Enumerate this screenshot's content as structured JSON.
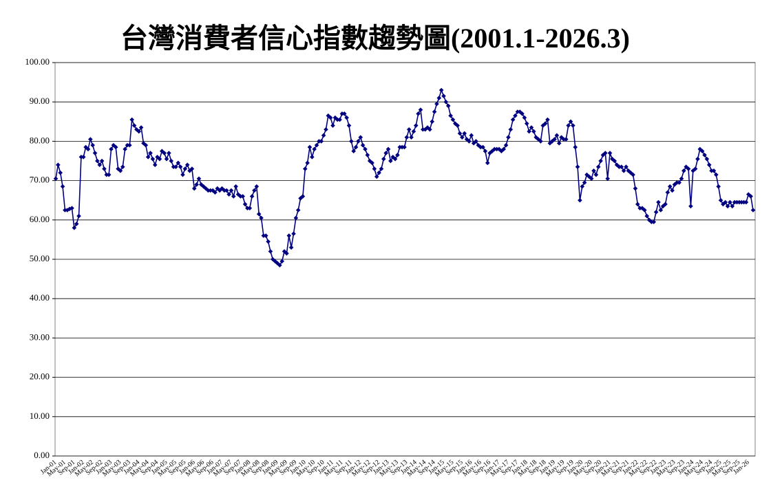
{
  "chart_data": {
    "type": "line",
    "title": "台灣消費者信心指數趨勢圖(2001.1-2026.3)",
    "categories": [
      "Jan-01",
      null,
      null,
      null,
      "May-01",
      null,
      null,
      null,
      "Sep-01",
      null,
      null,
      null,
      "Jan-02",
      null,
      null,
      null,
      "May-02",
      null,
      null,
      null,
      "Sep-02",
      null,
      null,
      null,
      "Jan-03",
      null,
      null,
      null,
      "May-03",
      null,
      null,
      null,
      "Sep-03",
      null,
      null,
      null,
      "Jan-04",
      null,
      null,
      null,
      "May-04",
      null,
      null,
      null,
      "Sep-04",
      null,
      null,
      null,
      "Jan-05",
      null,
      null,
      null,
      "May-05",
      null,
      null,
      null,
      "Sep-05",
      null,
      null,
      null,
      "Jan-06",
      null,
      null,
      null,
      "May-06",
      null,
      null,
      null,
      "Sep-06",
      null,
      null,
      null,
      "Jan-07",
      null,
      null,
      null,
      "May-07",
      null,
      null,
      null,
      "Sep-07",
      null,
      null,
      null,
      "Jan-08",
      null,
      null,
      null,
      "May-08",
      null,
      null,
      null,
      "Sep-08",
      null,
      null,
      null,
      "Jan-09",
      null,
      null,
      null,
      "May-09",
      null,
      null,
      null,
      "Sep-09",
      null,
      null,
      null,
      "Jan-10",
      null,
      null,
      null,
      "May-10",
      null,
      null,
      null,
      "Sep-10",
      null,
      null,
      null,
      "Jan-11",
      null,
      null,
      null,
      "May-11",
      null,
      null,
      null,
      "Sep-11",
      null,
      null,
      null,
      "Jan-12",
      null,
      null,
      null,
      "May-12",
      null,
      null,
      null,
      "Sep-12",
      null,
      null,
      null,
      "Jan-13",
      null,
      null,
      null,
      "May-13",
      null,
      null,
      null,
      "Sep-13",
      null,
      null,
      null,
      "Jan-14",
      null,
      null,
      null,
      "May-14",
      null,
      null,
      null,
      "Sep-14",
      null,
      null,
      null,
      "Jan-15",
      null,
      null,
      null,
      "May-15",
      null,
      null,
      null,
      "Sep-15",
      null,
      null,
      null,
      "Jan-16",
      null,
      null,
      null,
      "May-16",
      null,
      null,
      null,
      "Sep-16",
      null,
      null,
      null,
      "Jan-17",
      null,
      null,
      null,
      "May-17",
      null,
      null,
      null,
      "Sep-17",
      null,
      null,
      null,
      "Jan-18",
      null,
      null,
      null,
      "May-18",
      null,
      null,
      null,
      "Sep-18",
      null,
      null,
      null,
      "Jan-19",
      null,
      null,
      null,
      "May-19",
      null,
      null,
      null,
      "Sep-19",
      null,
      null,
      null,
      "Jan-20",
      null,
      null,
      null,
      "May-20",
      null,
      null,
      null,
      "Sep-20",
      null,
      null,
      null,
      "Jan-21",
      null,
      null,
      null,
      "May-21",
      null,
      null,
      null,
      "Sep-21",
      null,
      null,
      null,
      "Jan-22",
      null,
      null,
      null,
      "May-22",
      null,
      null,
      null,
      "Sep-22",
      null,
      null,
      null,
      "Jan-23",
      null,
      null,
      null,
      "May-23",
      null,
      null,
      null,
      "Sep-23",
      null,
      null,
      null,
      "Jan-24",
      null,
      null,
      null,
      "May-24",
      null,
      null,
      null,
      "Sep-24",
      null,
      null,
      null,
      "Jan-25",
      null,
      null,
      null,
      "May-25",
      null,
      null,
      null,
      "Sep-25",
      null,
      null,
      null,
      "Jan-26",
      null,
      null
    ],
    "values": [
      70.5,
      74,
      72,
      68.5,
      62.5,
      62.5,
      62.8,
      63,
      58,
      59,
      61,
      76,
      76,
      78.5,
      78,
      80.5,
      79,
      77,
      75,
      74,
      75,
      73,
      71.5,
      71.5,
      78,
      79,
      78.5,
      73,
      72.5,
      73.5,
      78,
      79,
      79,
      85.5,
      84,
      83,
      82.5,
      83.5,
      79.5,
      79,
      76,
      77,
      75.5,
      74,
      76,
      75.5,
      77.5,
      77,
      75.5,
      77,
      75,
      73.5,
      73.5,
      74.5,
      73.5,
      71.5,
      73,
      74,
      72.5,
      73,
      68,
      69,
      70.5,
      69,
      68.5,
      68,
      67.5,
      67.5,
      67.5,
      67,
      68,
      67.5,
      68,
      67.5,
      67.5,
      66.5,
      67.5,
      66,
      68.5,
      66.5,
      66,
      66,
      64,
      63,
      63,
      66,
      67.5,
      68.5,
      61.5,
      60.5,
      56,
      56,
      54.5,
      52,
      50,
      49.5,
      49,
      48.5,
      49.5,
      52,
      51.5,
      56,
      53,
      56.5,
      60.5,
      62.5,
      65.5,
      66,
      73,
      74.5,
      78.5,
      76,
      78,
      79,
      80,
      80,
      81.5,
      83,
      86.5,
      86,
      84,
      86,
      85.5,
      85.5,
      87,
      87,
      86,
      84,
      80,
      77.5,
      78.5,
      80,
      81,
      79,
      78,
      76.5,
      75,
      74.5,
      73,
      71,
      72,
      73,
      75.5,
      77,
      78,
      75,
      76,
      75.5,
      76.5,
      78.5,
      78.5,
      78.5,
      81,
      83,
      81,
      82.5,
      84,
      87,
      88,
      83,
      83,
      83.5,
      83,
      85,
      87.5,
      89.5,
      91,
      93,
      91.5,
      90,
      89,
      86.5,
      85.5,
      84.5,
      84,
      82,
      81,
      82,
      80.5,
      80,
      81.5,
      79.5,
      80,
      79,
      78.5,
      78.5,
      77.5,
      74.5,
      77,
      77.5,
      78,
      78,
      78,
      77.5,
      78,
      79,
      81,
      83,
      85.5,
      86.5,
      87.5,
      87.5,
      87,
      86,
      84.5,
      82.5,
      83.5,
      82.5,
      81,
      80.5,
      80,
      84,
      84.5,
      85.5,
      79.5,
      80,
      80.5,
      81.5,
      79.5,
      81,
      80.5,
      80.5,
      84,
      85,
      84,
      78.5,
      73.5,
      65,
      68.5,
      69.5,
      71.5,
      71,
      70.5,
      72.5,
      71.5,
      73.5,
      75,
      76.5,
      77,
      70.5,
      77,
      75.5,
      75,
      74,
      73.5,
      73.5,
      72.5,
      73.5,
      72.5,
      72,
      71.5,
      68,
      64,
      63,
      63,
      62.5,
      61,
      60,
      59.5,
      59.5,
      62,
      64.5,
      62.5,
      63.5,
      64,
      67,
      68.5,
      67.5,
      69,
      69.5,
      69.5,
      70.5,
      72.5,
      73.5,
      73,
      63.5,
      72.5,
      73,
      75.5,
      78,
      77.5,
      76.5,
      75.5,
      74,
      72.5,
      72.5,
      71.5,
      68.5,
      65,
      64,
      64.5,
      63.5,
      64.5,
      63.5,
      64.5,
      64.5,
      64.5,
      64.5,
      64.5,
      64.5,
      66.5,
      66,
      62.5
    ],
    "color": "#000080",
    "ylim": [
      0,
      100
    ],
    "yticks": [
      {
        "value": 0,
        "label": "0.00"
      },
      {
        "value": 10,
        "label": "10.00"
      },
      {
        "value": 20,
        "label": "20.00"
      },
      {
        "value": 30,
        "label": "30.00"
      },
      {
        "value": 40,
        "label": "40.00"
      },
      {
        "value": 50,
        "label": "50.00"
      },
      {
        "value": 60,
        "label": "60.00"
      },
      {
        "value": 70,
        "label": "70.00"
      },
      {
        "value": 80,
        "label": "80.00"
      },
      {
        "value": 90,
        "label": "90.00"
      },
      {
        "value": 100,
        "label": "100.00"
      }
    ],
    "grid": true
  }
}
